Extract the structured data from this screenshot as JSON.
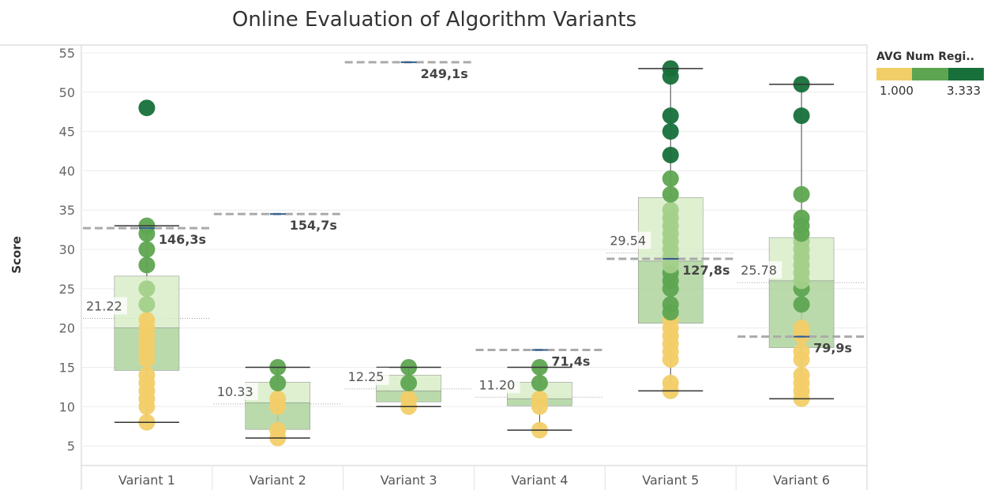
{
  "chart_data": {
    "type": "box",
    "title": "Online Evaluation of Algorithm Variants",
    "ylabel": "Score",
    "ylim": [
      2.5,
      56
    ],
    "yticks": [
      5,
      10,
      15,
      20,
      25,
      30,
      35,
      40,
      45,
      50,
      55
    ],
    "grid": true,
    "categories": [
      "Variant 1",
      "Variant 2",
      "Variant 3",
      "Variant 4",
      "Variant 5",
      "Variant 6"
    ],
    "boxes": [
      {
        "category": "Variant 1",
        "whisker_low": 8,
        "q1": 14.6,
        "median": 20,
        "q3": 26.6,
        "whisker_high": 33,
        "mean": 21.22,
        "mean_label": "21.22",
        "ref_value": 32.7,
        "ref_label": "146,3s",
        "points": [
          [
            8,
            0.0
          ],
          [
            10,
            0.0
          ],
          [
            11,
            0.0
          ],
          [
            12,
            0.0
          ],
          [
            13,
            0.0
          ],
          [
            14,
            0.0
          ],
          [
            16,
            0.05
          ],
          [
            17,
            0.05
          ],
          [
            18,
            0.05
          ],
          [
            19,
            0.05
          ],
          [
            20,
            0.05
          ],
          [
            21,
            0.05
          ],
          [
            23,
            0.3
          ],
          [
            25,
            0.3
          ],
          [
            28,
            0.55
          ],
          [
            30,
            0.55
          ],
          [
            32,
            0.6
          ],
          [
            33,
            0.6
          ],
          [
            48,
            1.0
          ]
        ]
      },
      {
        "category": "Variant 2",
        "whisker_low": 6,
        "q1": 7.1,
        "median": 10.5,
        "q3": 13.1,
        "whisker_high": 15,
        "mean": 10.33,
        "mean_label": "10.33",
        "ref_value": 34.5,
        "ref_label": "154,7s",
        "points": [
          [
            6,
            0.0
          ],
          [
            7,
            0.0
          ],
          [
            10,
            0.0
          ],
          [
            11,
            0.0
          ],
          [
            13,
            0.6
          ],
          [
            15,
            0.6
          ]
        ]
      },
      {
        "category": "Variant 3",
        "whisker_low": 10,
        "q1": 10.6,
        "median": 12,
        "q3": 14,
        "whisker_high": 15,
        "mean": 12.25,
        "mean_label": "12.25",
        "ref_value": 53.8,
        "ref_label": "249,1s",
        "points": [
          [
            10,
            0.0
          ],
          [
            11,
            0.0
          ],
          [
            13,
            0.6
          ],
          [
            15,
            0.6
          ]
        ]
      },
      {
        "category": "Variant 4",
        "whisker_low": 7,
        "q1": 10.1,
        "median": 11,
        "q3": 13.1,
        "whisker_high": 15,
        "mean": 11.2,
        "mean_label": "11.20",
        "ref_value": 17.2,
        "ref_label": "71,4s",
        "points": [
          [
            7,
            0.0
          ],
          [
            10,
            0.0
          ],
          [
            11,
            0.0
          ],
          [
            13,
            0.6
          ],
          [
            15,
            0.6
          ]
        ]
      },
      {
        "category": "Variant 5",
        "whisker_low": 12,
        "q1": 20.6,
        "median": 28.5,
        "q3": 36.6,
        "whisker_high": 53,
        "mean": 29.54,
        "mean_label": "29.54",
        "ref_value": 28.8,
        "ref_label": "127,8s",
        "points": [
          [
            12,
            0.0
          ],
          [
            13,
            0.0
          ],
          [
            16,
            0.0
          ],
          [
            17,
            0.0
          ],
          [
            18,
            0.0
          ],
          [
            19,
            0.0
          ],
          [
            20,
            0.0
          ],
          [
            21,
            0.0
          ],
          [
            22,
            0.55
          ],
          [
            23,
            0.55
          ],
          [
            25,
            0.55
          ],
          [
            26,
            0.55
          ],
          [
            27,
            0.6
          ],
          [
            28,
            0.3
          ],
          [
            29,
            0.3
          ],
          [
            30,
            0.3
          ],
          [
            31,
            0.3
          ],
          [
            32,
            0.3
          ],
          [
            33,
            0.3
          ],
          [
            34,
            0.3
          ],
          [
            35,
            0.3
          ],
          [
            37,
            0.55
          ],
          [
            39,
            0.55
          ],
          [
            42,
            1.0
          ],
          [
            45,
            1.0
          ],
          [
            47,
            1.0
          ],
          [
            52,
            1.0
          ],
          [
            53,
            1.0
          ]
        ]
      },
      {
        "category": "Variant 6",
        "whisker_low": 11,
        "q1": 17.5,
        "median": 26,
        "q3": 31.5,
        "whisker_high": 51,
        "mean": 25.78,
        "mean_label": "25.78",
        "ref_value": 18.9,
        "ref_label": "79,9s",
        "points": [
          [
            11,
            0.0
          ],
          [
            12,
            0.0
          ],
          [
            13,
            0.0
          ],
          [
            14,
            0.0
          ],
          [
            16,
            0.0
          ],
          [
            17,
            0.0
          ],
          [
            19,
            0.05
          ],
          [
            20,
            0.05
          ],
          [
            23,
            0.55
          ],
          [
            25,
            0.55
          ],
          [
            26,
            0.3
          ],
          [
            27,
            0.3
          ],
          [
            28,
            0.3
          ],
          [
            29,
            0.3
          ],
          [
            30,
            0.3
          ],
          [
            31,
            0.3
          ],
          [
            32,
            0.55
          ],
          [
            33,
            0.55
          ],
          [
            34,
            0.55
          ],
          [
            37,
            0.55
          ],
          [
            47,
            1.0
          ],
          [
            51,
            1.0
          ]
        ]
      }
    ],
    "legend": {
      "title": "AVG Num Regi..",
      "min_label": "1.000",
      "max_label": "3.333",
      "position": "top-right",
      "colors": [
        "#f2ce68",
        "#5ea551",
        "#17703a"
      ]
    },
    "colors": {
      "point_low": "#f2ce68",
      "point_mid_light": "#a3d08a",
      "point_mid": "#5ea551",
      "point_high": "#17703a",
      "box_upper": "#d9edc9",
      "box_lower": "#aed49d",
      "ref_line": "#aaaaaa",
      "ref_tick": "#2f5e8e",
      "grid": "#ececec"
    }
  }
}
